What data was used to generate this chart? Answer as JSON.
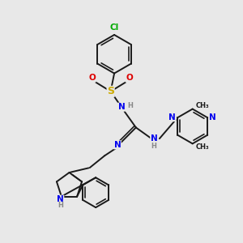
{
  "bg_color": "#e8e8e8",
  "bond_color": "#1a1a1a",
  "bond_width": 1.4,
  "figsize": [
    3.0,
    3.0
  ],
  "dpi": 100,
  "atom_colors": {
    "C": "#1a1a1a",
    "N": "#0000ee",
    "O": "#dd0000",
    "S": "#ccaa00",
    "Cl": "#00aa00",
    "H": "#888888"
  },
  "fontsizes": {
    "element": 7.5,
    "small": 6.0,
    "methyl": 6.5
  },
  "layout": {
    "xlim": [
      0,
      10
    ],
    "ylim": [
      0,
      10
    ]
  }
}
